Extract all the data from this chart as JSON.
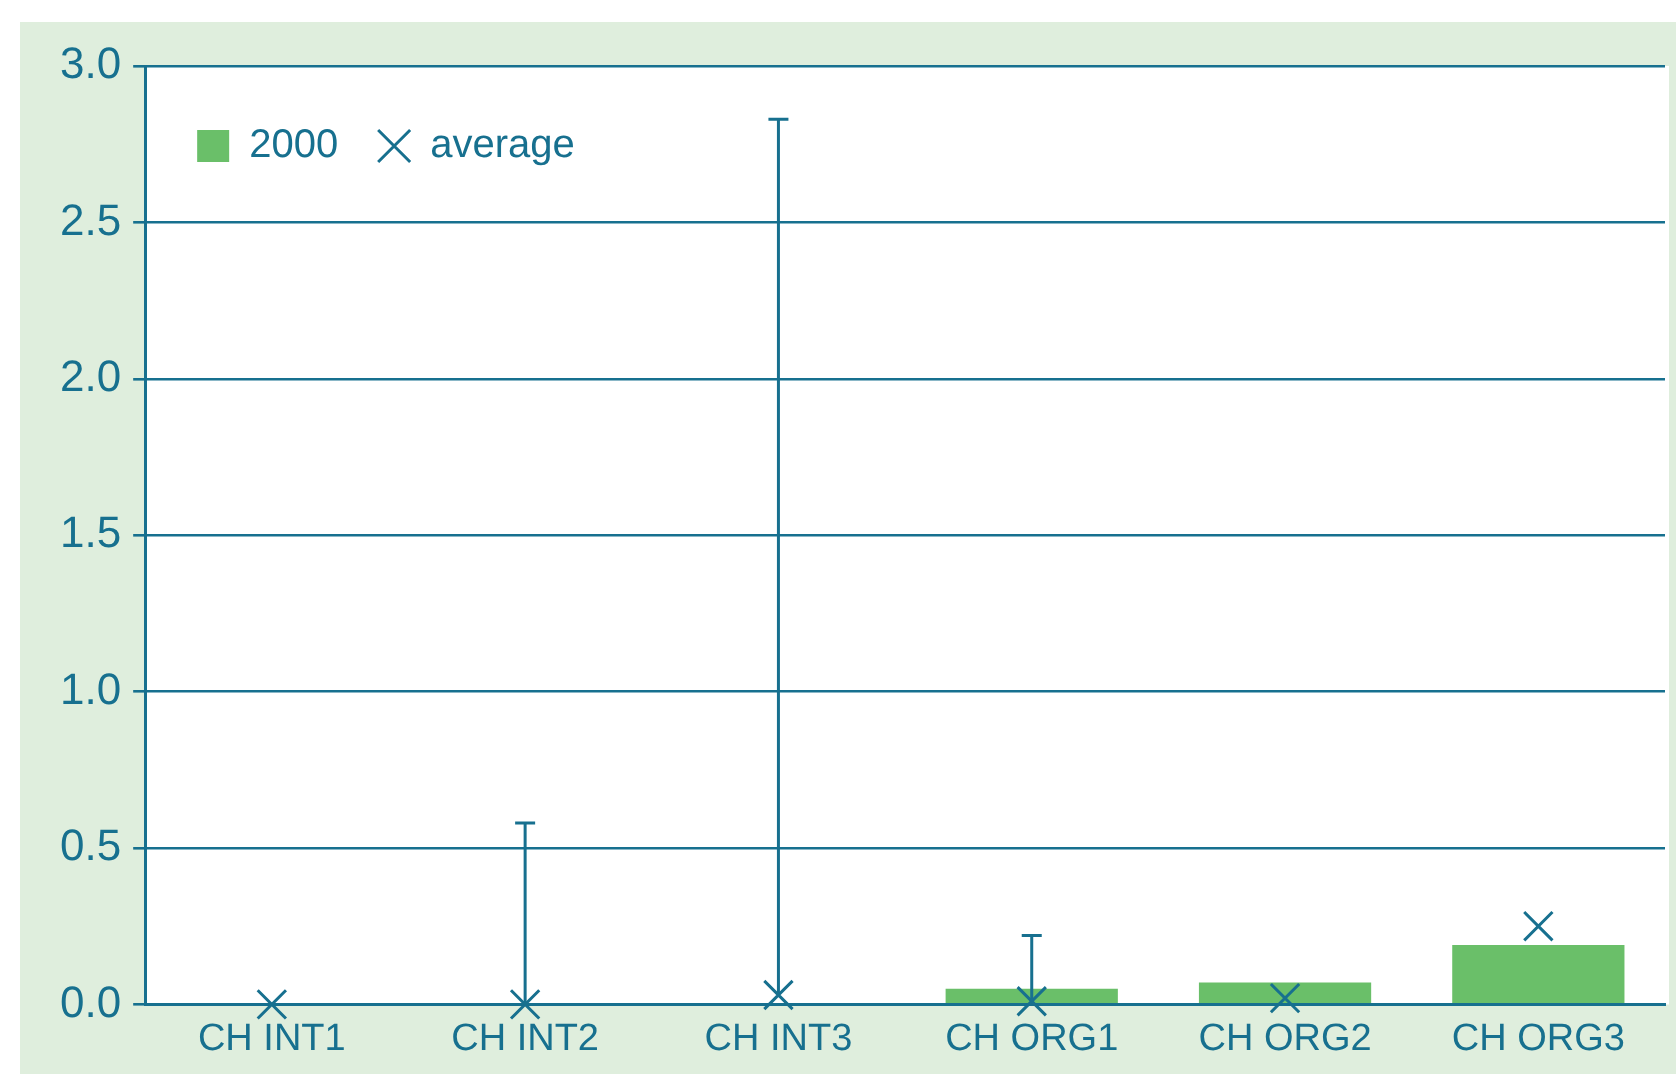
{
  "chart_data": {
    "type": "bar",
    "categories": [
      "CH INT1",
      "CH INT2",
      "CH INT3",
      "CH ORG1",
      "CH ORG2",
      "CH ORG3"
    ],
    "series": [
      {
        "name": "2000",
        "color": "#6abf69",
        "values": [
          0,
          0,
          0,
          0.05,
          0.07,
          0.19
        ]
      },
      {
        "name": "average",
        "type": "scatter",
        "color": "#17708f",
        "x": [
          "CH INT1",
          "CH INT2",
          "CH INT3",
          "CH ORG1",
          "CH ORG2",
          "CH ORG3"
        ],
        "values": [
          0,
          0,
          0.03,
          0.01,
          0.02,
          0.25
        ],
        "errors": [
          null,
          [
            0,
            0.58
          ],
          [
            0.03,
            2.83
          ],
          [
            0.01,
            0.22
          ],
          null,
          null
        ],
        "marker": "cross"
      }
    ],
    "ylim": [
      0,
      3
    ],
    "yticks": [
      {
        "value": 0,
        "label": "0.0"
      },
      {
        "value": 0.5,
        "label": "0.5"
      },
      {
        "value": 1,
        "label": "1.0"
      },
      {
        "value": 1.5,
        "label": "1.5"
      },
      {
        "value": 2,
        "label": "2.0"
      },
      {
        "value": 2.5,
        "label": "2.5"
      },
      {
        "value": 3,
        "label": "3.0"
      }
    ],
    "grid": "y",
    "legend": "top left"
  }
}
